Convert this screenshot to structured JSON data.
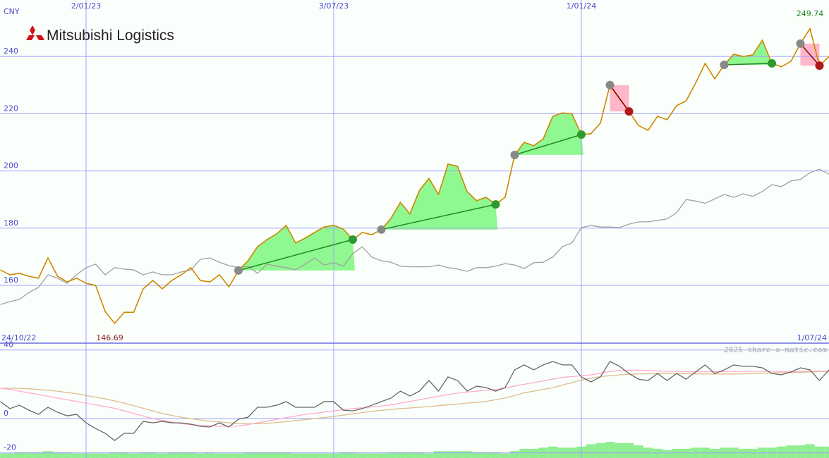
{
  "chart_data": [
    {
      "type": "line",
      "title": "Mitsubishi Logistics",
      "ylabel": "CNY",
      "date_from": "24/10/22",
      "date_to": "1/07/24",
      "categories": [
        null,
        null,
        null,
        null,
        null,
        null,
        null,
        null,
        null,
        "2/01/23",
        null,
        null,
        null,
        null,
        null,
        null,
        null,
        null,
        null,
        null,
        null,
        null,
        null,
        null,
        null,
        null,
        null,
        null,
        null,
        null,
        null,
        null,
        null,
        null,
        null,
        "3/07/23",
        null,
        null,
        null,
        null,
        null,
        null,
        null,
        null,
        null,
        null,
        null,
        null,
        null,
        null,
        null,
        null,
        null,
        null,
        null,
        null,
        null,
        null,
        null,
        null,
        null,
        "1/01/24",
        null,
        null,
        null,
        null,
        null,
        null,
        null,
        null,
        null,
        null,
        null,
        null,
        null,
        null,
        null,
        null,
        null,
        null,
        null,
        null,
        null,
        null,
        null,
        null,
        null,
        null
      ],
      "series": [
        {
          "color": "#cc8800",
          "values": [
            165.4,
            163.7,
            164.2,
            163.2,
            162.5,
            169.6,
            163.2,
            161.2,
            162.5,
            160.7,
            160,
            150.9,
            146.69,
            150.6,
            150.6,
            158.8,
            161.7,
            158.8,
            161.7,
            163.7,
            166.2,
            161.7,
            161.2,
            163.7,
            159.5,
            165.2,
            168.6,
            173.5,
            176,
            178,
            181,
            174.8,
            176.5,
            178.5,
            180.4,
            181,
            179.7,
            176,
            178.5,
            177.7,
            179.5,
            183.4,
            189,
            185,
            193.2,
            197.4,
            191.8,
            202.4,
            201.6,
            192.8,
            189.6,
            190.8,
            188.3,
            190.8,
            205.6,
            210,
            208.8,
            211.2,
            219.1,
            220.3,
            220,
            212.7,
            213,
            216.7,
            230,
            225.3,
            220.8,
            215.9,
            214.2,
            219.1,
            217.9,
            222.8,
            224.5,
            230.7,
            237.6,
            232.2,
            237.1,
            240.8,
            240,
            240.6,
            245.7,
            237.6,
            236.4,
            238.3,
            244.5,
            249.74,
            236.8,
            240
          ]
        },
        {
          "color": "#a0a0a0",
          "values": [
            153.3,
            154.3,
            155.1,
            157.5,
            159.3,
            163.7,
            162.5,
            160.7,
            163.7,
            166.2,
            167.4,
            163.7,
            166.2,
            165.7,
            165.4,
            163.7,
            164.7,
            163.7,
            163.7,
            164.7,
            165.4,
            169.1,
            169.6,
            168.1,
            166.9,
            166.2,
            166.7,
            164.2,
            167.4,
            166.7,
            166.2,
            165.4,
            167.4,
            169.6,
            167.1,
            167.9,
            166.7,
            171.1,
            173.5,
            169.9,
            168.6,
            168.1,
            166.7,
            166.5,
            166.5,
            166.5,
            167.1,
            166.2,
            165.7,
            164.9,
            166.2,
            166.2,
            166.7,
            167.6,
            167.1,
            165.9,
            167.9,
            168.1,
            169.9,
            173.5,
            174.8,
            180.2,
            180.9,
            180.4,
            180.4,
            180.2,
            181.4,
            182.2,
            182.2,
            182.7,
            183.2,
            185.4,
            190,
            189.5,
            188.7,
            190.2,
            191.8,
            190.8,
            192,
            191.1,
            192.8,
            195.2,
            194.5,
            196.5,
            197,
            199.4,
            200.6,
            198.9
          ]
        }
      ],
      "trades": [
        {
          "entry": 25,
          "exit": 37
        },
        {
          "entry": 40,
          "exit": 52
        },
        {
          "entry": 54,
          "exit": 61
        },
        {
          "entry": 64,
          "exit": 66
        },
        {
          "entry": 76,
          "exit": 81
        },
        {
          "entry": 84,
          "exit": 86
        }
      ],
      "win_color": "#90f890",
      "loss_color": "#ffb6c8",
      "high_color": "#228822",
      "low_color": "#8b1a1a",
      "ylim": [
        139.8,
        259.75
      ],
      "yticks": [
        160,
        180,
        200,
        220,
        240
      ],
      "grid": true
    },
    {
      "type": "line",
      "watermark": "2025 share-o-matic.com",
      "series": [
        {
          "color": "#666666",
          "values": [
            9.9,
            5.8,
            7.8,
            4.9,
            2.5,
            6.6,
            3.7,
            1.6,
            2.5,
            -2.5,
            -5.8,
            -8.6,
            -12.8,
            -8.6,
            -8.6,
            -1.6,
            -2.5,
            -1.6,
            -2.5,
            -2.5,
            -3.3,
            -4.5,
            -4.9,
            -2.5,
            -4.9,
            -0.4,
            0.8,
            6.6,
            6.6,
            7.8,
            9.9,
            6.6,
            6.6,
            6.6,
            9.9,
            9.9,
            4.9,
            4.5,
            5.8,
            7.8,
            9.9,
            11.9,
            16,
            13.2,
            16,
            22.2,
            16,
            24.3,
            22.2,
            16,
            18.9,
            18.1,
            16,
            18.1,
            28.4,
            31.3,
            28.4,
            31.3,
            33.3,
            31.3,
            31.3,
            24.3,
            21.4,
            24.3,
            33.3,
            30.5,
            26.3,
            23,
            22.2,
            26.3,
            22.2,
            26.3,
            23,
            27.2,
            31.3,
            26.3,
            28.4,
            31.3,
            30.5,
            30.5,
            29.6,
            26.3,
            25.5,
            27.2,
            29.6,
            28.4,
            22.2,
            28.4
          ]
        },
        {
          "color": "#ffaacc",
          "values": [
            17.7,
            17,
            16,
            15,
            14,
            13,
            12,
            11,
            10,
            9,
            8,
            7,
            6,
            4.5,
            3,
            1.5,
            0,
            -1,
            -2,
            -3,
            -3.5,
            -4,
            -4.2,
            -4.5,
            -4.5,
            -4.3,
            -3.5,
            -2.5,
            -1.5,
            -0.5,
            0.5,
            1.5,
            2.5,
            3,
            3.8,
            4.5,
            5.2,
            5.8,
            6.3,
            6.8,
            7.3,
            8,
            9,
            10,
            11,
            12,
            13,
            14,
            14.8,
            15.5,
            16,
            16.5,
            17,
            17.8,
            19,
            20,
            21,
            22,
            23,
            24,
            24.5,
            25,
            25.5,
            26.5,
            27.5,
            28,
            28.2,
            28.2,
            28,
            27.8,
            27.6,
            27.5,
            27.4,
            27.3,
            27.3,
            27.3,
            27.3,
            27.4,
            27.5,
            27.6,
            27.6,
            27.5,
            27.3,
            27.3,
            27.5,
            27.7,
            27.7,
            27.7
          ]
        },
        {
          "color": "#dcbb8c",
          "values": [
            17.7,
            17.7,
            17.6,
            17.4,
            17,
            16.5,
            16,
            15.2,
            14.5,
            13.5,
            12.5,
            11.5,
            10.3,
            9,
            7.5,
            6,
            4.5,
            3,
            1.8,
            0.8,
            0,
            -0.8,
            -1.5,
            -2,
            -2.5,
            -2.8,
            -3,
            -3,
            -2.8,
            -2.3,
            -1.8,
            -1.2,
            -0.6,
            0,
            0.6,
            1.2,
            2,
            2.8,
            3.5,
            4.2,
            4.8,
            5.3,
            5.8,
            6.2,
            6.6,
            7,
            7.5,
            8,
            8.5,
            9,
            9.5,
            10,
            11,
            12,
            13.5,
            15,
            16,
            17,
            18,
            19.5,
            21,
            22.5,
            23.5,
            24.5,
            25,
            25.5,
            25.8,
            26,
            26.2,
            26.3,
            26.4,
            26.3,
            26.2,
            26.1,
            26,
            26,
            26,
            26,
            26.1,
            26.3,
            26.5,
            26.6,
            26.7,
            26.8,
            27,
            27.2,
            27.4,
            27.5
          ]
        }
      ],
      "volume": {
        "color": "#90ee90",
        "ylim": [
          0,
          100
        ],
        "values": [
          4,
          4,
          5,
          5,
          5,
          6,
          5,
          5,
          4,
          4,
          4,
          4,
          5,
          5,
          4,
          5,
          5,
          4,
          5,
          5,
          5,
          4,
          5,
          4,
          4,
          4,
          5,
          5,
          5,
          5,
          5,
          4,
          4,
          4,
          4,
          4,
          5,
          5,
          4,
          4,
          4,
          5,
          5,
          5,
          5,
          4,
          6,
          6,
          6,
          6,
          5,
          5,
          5,
          4,
          6,
          8,
          8,
          9,
          10,
          9,
          9,
          10,
          12,
          13,
          14,
          13,
          13,
          11,
          9,
          8,
          7,
          8,
          8,
          9,
          9,
          8,
          9,
          9,
          8,
          8,
          9,
          9,
          10,
          11,
          11,
          12,
          10,
          10
        ]
      },
      "ylim": [
        -23,
        44
      ],
      "yticks": [
        40,
        0,
        -20
      ],
      "grid": true
    }
  ]
}
